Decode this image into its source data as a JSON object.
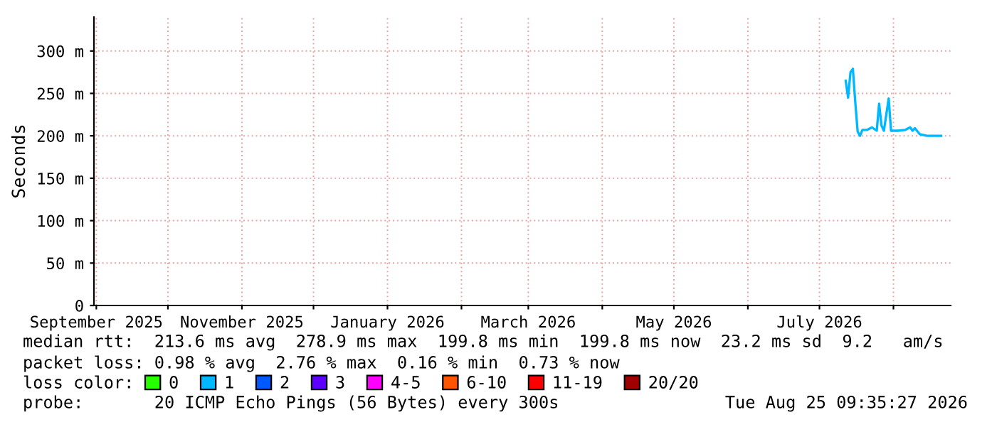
{
  "chart_data": {
    "type": "line",
    "ylabel": "Seconds",
    "xlim": [
      "2025-08-31",
      "2026-08-25"
    ],
    "xticks": [
      {
        "value": "2025-09-01",
        "label": "September 2025"
      },
      {
        "value": "2025-10-01",
        "label": null
      },
      {
        "value": "2025-11-01",
        "label": "November 2025"
      },
      {
        "value": "2025-12-01",
        "label": null
      },
      {
        "value": "2026-01-01",
        "label": "January 2026"
      },
      {
        "value": "2026-02-01",
        "label": null
      },
      {
        "value": "2026-03-01",
        "label": "March 2026"
      },
      {
        "value": "2026-04-01",
        "label": null
      },
      {
        "value": "2026-05-01",
        "label": "May 2026"
      },
      {
        "value": "2026-06-01",
        "label": null
      },
      {
        "value": "2026-07-01",
        "label": "July 2026"
      },
      {
        "value": "2026-08-01",
        "label": null
      }
    ],
    "ylim": [
      0,
      340
    ],
    "yticks": [
      0,
      {
        "value": 50,
        "label": "50 m"
      },
      {
        "value": 100,
        "label": "100 m"
      },
      {
        "value": 150,
        "label": "150 m"
      },
      {
        "value": 200,
        "label": "200 m"
      },
      {
        "value": 250,
        "label": "250 m"
      },
      {
        "value": 300,
        "label": "300 m"
      }
    ],
    "grid": true,
    "legend": "bottom",
    "legend_title": "loss color:",
    "marker": "none",
    "line_style": "solid",
    "series": [
      {
        "name": "0",
        "color": "#26ff00"
      },
      {
        "name": "1",
        "color": "#00b8ff",
        "x": [
          "2026-07-12",
          "2026-07-13",
          "2026-07-14",
          "2026-07-15",
          "2026-07-16",
          "2026-07-17",
          "2026-07-18",
          "2026-07-19",
          "2026-07-21",
          "2026-07-23",
          "2026-07-25",
          "2026-07-26",
          "2026-07-27",
          "2026-07-28",
          "2026-07-29",
          "2026-07-30",
          "2026-07-31",
          "2026-08-03",
          "2026-08-06",
          "2026-08-08",
          "2026-08-09",
          "2026-08-10",
          "2026-08-12",
          "2026-08-15",
          "2026-08-18",
          "2026-08-21"
        ],
        "values": [
          265,
          245,
          275,
          279,
          240,
          205,
          200,
          207,
          207,
          210,
          206,
          238,
          212,
          206,
          225,
          244,
          206,
          206,
          207,
          210,
          206,
          209,
          202,
          200,
          200,
          200
        ]
      },
      {
        "name": "2",
        "color": "#0059ff"
      },
      {
        "name": "3",
        "color": "#5e00ff"
      },
      {
        "name": "4-5",
        "color": "#ff00ff"
      },
      {
        "name": "6-10",
        "color": "#ff5500"
      },
      {
        "name": "11-19",
        "color": "#ff0000"
      },
      {
        "name": "20/20",
        "color": "#a10000"
      }
    ],
    "annotations": [
      "median rtt:  213.6 ms avg  278.9 ms max  199.8 ms min  199.8 ms now  23.2 ms sd  9.2   am/s",
      "packet loss: 0.98 % avg  2.76 % max  0.16 % min  0.73 % now",
      "probe:       20 ICMP Echo Pings (56 Bytes) every 300s",
      "Tue Aug 25 09:35:27 2026"
    ]
  }
}
